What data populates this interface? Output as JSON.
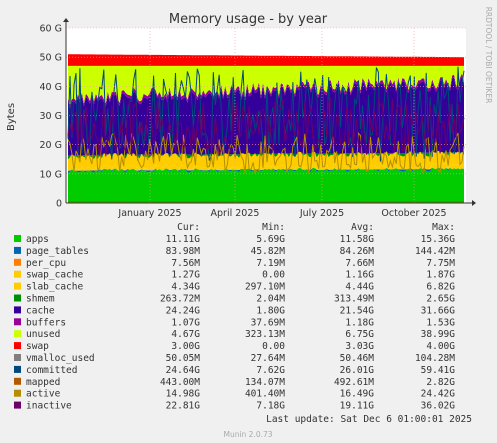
{
  "chart_data": {
    "type": "area",
    "title": "Memory usage - by year",
    "ylabel": "Bytes",
    "yticks": [
      "0",
      "10 G",
      "20 G",
      "30 G",
      "40 G",
      "50 G",
      "60 G"
    ],
    "ylim": [
      0,
      60
    ],
    "xticks": [
      "January 2025",
      "April 2025",
      "July 2025",
      "October 2025"
    ],
    "stack_levels_start": {
      "apps": 11,
      "page_tables": 11.1,
      "per_cpu": 11.1,
      "swap_cache": 12,
      "slab_cache": 16,
      "shmem": 16.3,
      "cache": 35,
      "buffers": 36,
      "unused": 47,
      "swap": 51
    },
    "stack_levels_end": {
      "apps": 11.5,
      "page_tables": 11.6,
      "per_cpu": 11.6,
      "swap_cache": 12.8,
      "slab_cache": 17,
      "shmem": 17.3,
      "cache": 41,
      "buffers": 42,
      "unused": 47,
      "swap": 50
    },
    "line_series_range": {
      "committed": [
        14,
        47
      ],
      "mapped": [
        0.4,
        0.5
      ],
      "active": [
        10,
        24
      ],
      "inactive": [
        16,
        36
      ]
    },
    "grid": true,
    "legend_header": [
      "Cur:",
      "Min:",
      "Avg:",
      "Max:"
    ],
    "series": [
      {
        "name": "apps",
        "color": "#00cc00",
        "cur": "11.11G",
        "min": "5.69G",
        "avg": "11.58G",
        "max": "15.36G"
      },
      {
        "name": "page_tables",
        "color": "#0066b3",
        "cur": "83.98M",
        "min": "45.82M",
        "avg": "84.26M",
        "max": "144.42M"
      },
      {
        "name": "per_cpu",
        "color": "#ff8000",
        "cur": "7.56M",
        "min": "7.19M",
        "avg": "7.66M",
        "max": "7.75M"
      },
      {
        "name": "swap_cache",
        "color": "#ffcc00",
        "cur": "1.27G",
        "min": "0.00",
        "avg": "1.16G",
        "max": "1.87G"
      },
      {
        "name": "slab_cache",
        "color": "#ffcc00",
        "cur": "4.34G",
        "min": "297.10M",
        "avg": "4.44G",
        "max": "6.82G"
      },
      {
        "name": "shmem",
        "color": "#008f00",
        "cur": "263.72M",
        "min": "2.04M",
        "avg": "313.49M",
        "max": "2.65G"
      },
      {
        "name": "cache",
        "color": "#330099",
        "cur": "24.24G",
        "min": "1.80G",
        "avg": "21.54G",
        "max": "31.66G"
      },
      {
        "name": "buffers",
        "color": "#990099",
        "cur": "1.07G",
        "min": "37.69M",
        "avg": "1.18G",
        "max": "1.53G"
      },
      {
        "name": "unused",
        "color": "#ccff00",
        "cur": "4.67G",
        "min": "323.13M",
        "avg": "6.75G",
        "max": "38.99G"
      },
      {
        "name": "swap",
        "color": "#ff0000",
        "cur": "3.00G",
        "min": "0.00",
        "avg": "3.03G",
        "max": "4.00G"
      },
      {
        "name": "vmalloc_used",
        "color": "#808080",
        "cur": "50.05M",
        "min": "27.64M",
        "avg": "50.46M",
        "max": "104.28M"
      },
      {
        "name": "committed",
        "color": "#00487d",
        "cur": "24.64G",
        "min": "7.62G",
        "avg": "26.01G",
        "max": "59.41G"
      },
      {
        "name": "mapped",
        "color": "#b35a00",
        "cur": "443.00M",
        "min": "134.07M",
        "avg": "492.61M",
        "max": "2.82G"
      },
      {
        "name": "active",
        "color": "#b38f00",
        "cur": "14.98G",
        "min": "401.40M",
        "avg": "16.49G",
        "max": "24.42G"
      },
      {
        "name": "inactive",
        "color": "#6b006b",
        "cur": "22.81G",
        "min": "7.18G",
        "avg": "19.11G",
        "max": "36.02G"
      }
    ]
  },
  "last_update": "Last update:  Sat Dec  6 01:00:01 2025",
  "side_text": "RRDTOOL / TOBI OETIKER",
  "footer": "Munin 2.0.73"
}
